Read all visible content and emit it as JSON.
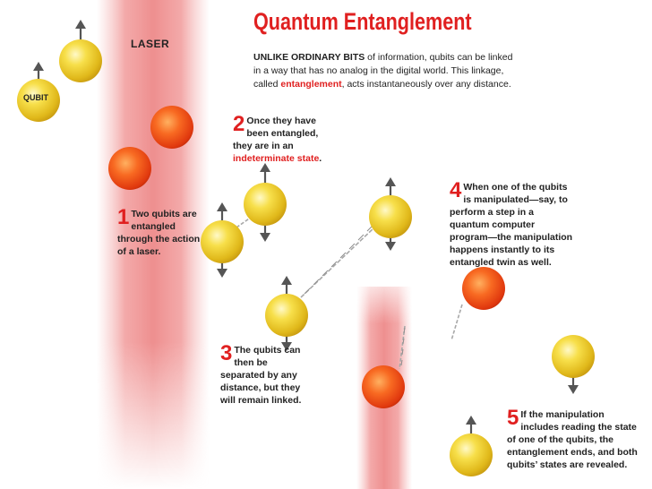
{
  "title": "Quantum Entanglement",
  "intro": {
    "lead": "UNLIKE ORDINARY BITS",
    "text1": " of information, qubits can be linked in a way that has no analog in the digital world. This linkage, called ",
    "highlight": "entanglement",
    "text2": ", acts instantaneously over any distance."
  },
  "labels": {
    "laser": "LASER",
    "qubit": "QUBIT"
  },
  "steps": [
    {
      "number": "1",
      "text": "Two qubits are entangled through the action of a laser."
    },
    {
      "number": "2",
      "text_before": "Once they have been entangled, they are in an ",
      "highlight": "indeterminate state",
      "text_after": "."
    },
    {
      "number": "3",
      "text": "The qubits can then be separated by any distance, but they will remain linked."
    },
    {
      "number": "4",
      "text": "When one of the qubits is manipulated—say, to perform a step in a quantum computer program—the manipulation happens instantly to its entangled twin as well."
    },
    {
      "number": "5",
      "text": "If the manipulation includes reading the state of one of the qubits, the entanglement ends, and both qubits’ states are revealed."
    }
  ],
  "colors": {
    "accent": "#e02020",
    "laser": "#f2a4a4",
    "qubit_yellow": "#f5d33a",
    "qubit_orange": "#f24a1a",
    "chain": "#b0b0b0",
    "arrow": "#555555"
  }
}
